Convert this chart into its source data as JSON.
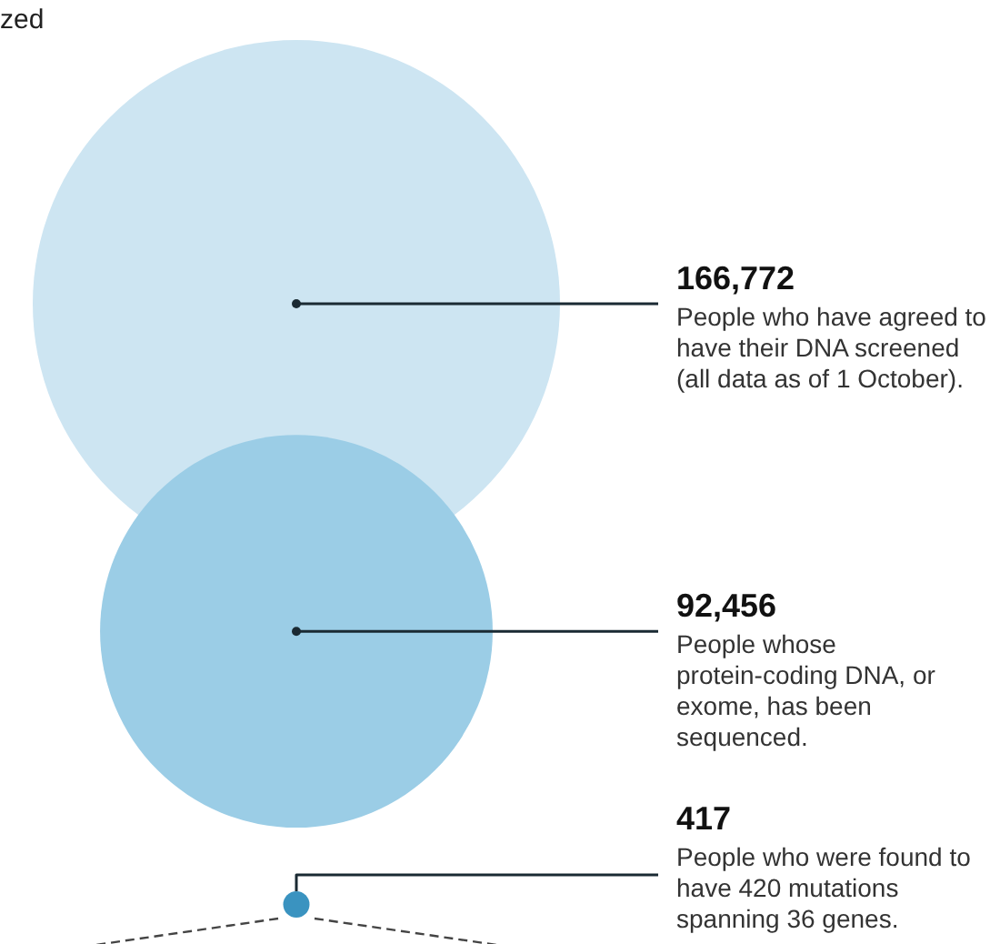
{
  "chart_data": {
    "type": "other",
    "categories": [
      "People who have agreed to have their DNA screened (all data as of 1 October).",
      "People whose protein-coding DNA, or exome, has been sequenced.",
      "People who were found to have 420 mutations spanning 36 genes."
    ],
    "values": [
      166772,
      92456,
      417
    ],
    "value_labels": [
      "166,772",
      "92,456",
      "417"
    ],
    "colors": [
      "#cde5f2",
      "#9bcde6",
      "#3a93c0"
    ],
    "annotations": [
      "zed"
    ]
  }
}
